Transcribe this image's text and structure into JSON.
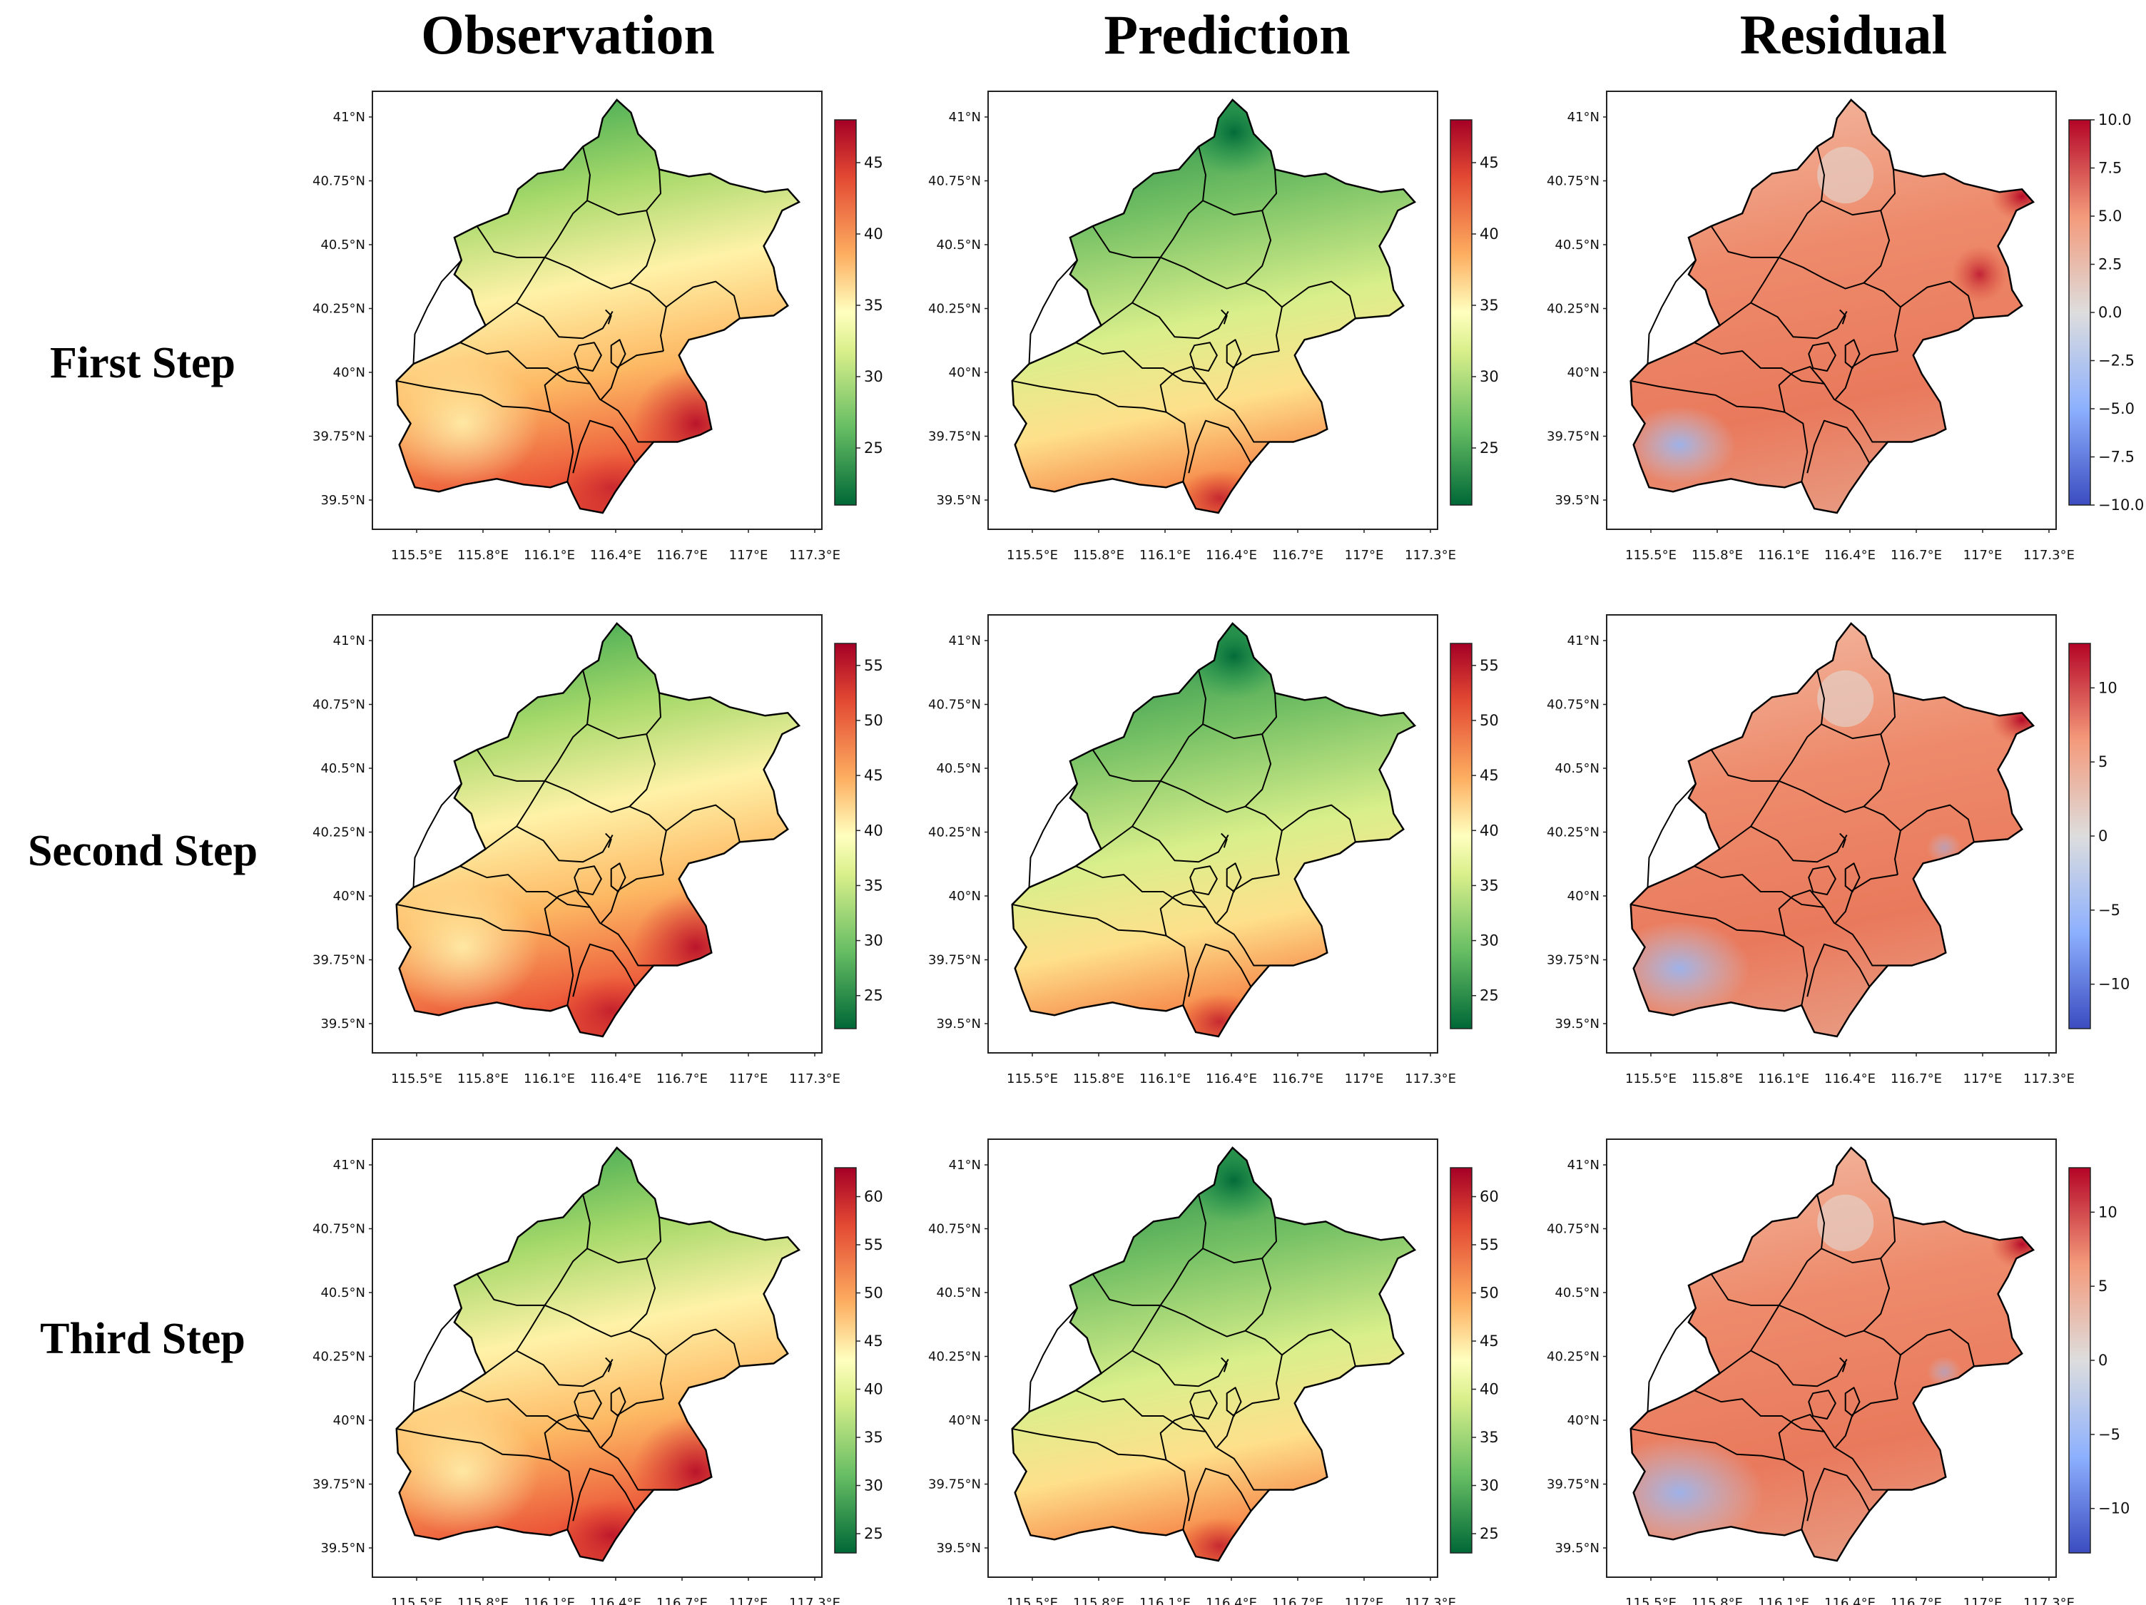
{
  "column_titles": [
    "Observation",
    "Prediction",
    "Residual"
  ],
  "row_titles": [
    "First Step",
    "Second Step",
    "Third Step"
  ],
  "chart_data": {
    "type": "heatmap",
    "layout": "3x3 grid of map panels",
    "map_region": "Beijing districts",
    "x_ticks": [
      "115.5°E",
      "115.8°E",
      "116.1°E",
      "116.4°E",
      "116.7°E",
      "117°E",
      "117.3°E"
    ],
    "y_ticks": [
      "41°N",
      "40.75°N",
      "40.5°N",
      "40.25°N",
      "40°N",
      "39.75°N",
      "39.5°N"
    ],
    "panels": [
      {
        "row": "First Step",
        "column": "Observation",
        "colormap": "RdYlGn_r",
        "colorbar_range": [
          21,
          48
        ],
        "colorbar_ticks": [
          "45",
          "40",
          "35",
          "30",
          "25"
        ]
      },
      {
        "row": "First Step",
        "column": "Prediction",
        "colormap": "RdYlGn_r",
        "colorbar_range": [
          21,
          48
        ],
        "colorbar_ticks": [
          "45",
          "40",
          "35",
          "30",
          "25"
        ]
      },
      {
        "row": "First Step",
        "column": "Residual",
        "colormap": "coolwarm",
        "colorbar_range": [
          -10,
          10
        ],
        "colorbar_ticks": [
          "10.0",
          "7.5",
          "5.0",
          "2.5",
          "0.0",
          "−2.5",
          "−5.0",
          "−7.5",
          "−10.0"
        ]
      },
      {
        "row": "Second Step",
        "column": "Observation",
        "colormap": "RdYlGn_r",
        "colorbar_range": [
          22,
          57
        ],
        "colorbar_ticks": [
          "55",
          "50",
          "45",
          "40",
          "35",
          "30",
          "25"
        ]
      },
      {
        "row": "Second Step",
        "column": "Prediction",
        "colormap": "RdYlGn_r",
        "colorbar_range": [
          22,
          57
        ],
        "colorbar_ticks": [
          "55",
          "50",
          "45",
          "40",
          "35",
          "30",
          "25"
        ]
      },
      {
        "row": "Second Step",
        "column": "Residual",
        "colormap": "coolwarm",
        "colorbar_range": [
          -13,
          13
        ],
        "colorbar_ticks": [
          "10",
          "5",
          "0",
          "−5",
          "−10"
        ]
      },
      {
        "row": "Third Step",
        "column": "Observation",
        "colormap": "RdYlGn_r",
        "colorbar_range": [
          23,
          63
        ],
        "colorbar_ticks": [
          "60",
          "55",
          "50",
          "45",
          "40",
          "35",
          "30",
          "25"
        ]
      },
      {
        "row": "Third Step",
        "column": "Prediction",
        "colormap": "RdYlGn_r",
        "colorbar_range": [
          23,
          63
        ],
        "colorbar_ticks": [
          "60",
          "55",
          "50",
          "45",
          "40",
          "35",
          "30",
          "25"
        ]
      },
      {
        "row": "Third Step",
        "column": "Residual",
        "colormap": "coolwarm",
        "colorbar_range": [
          -13,
          13
        ],
        "colorbar_ticks": [
          "10",
          "5",
          "0",
          "−5",
          "−10"
        ]
      }
    ]
  }
}
